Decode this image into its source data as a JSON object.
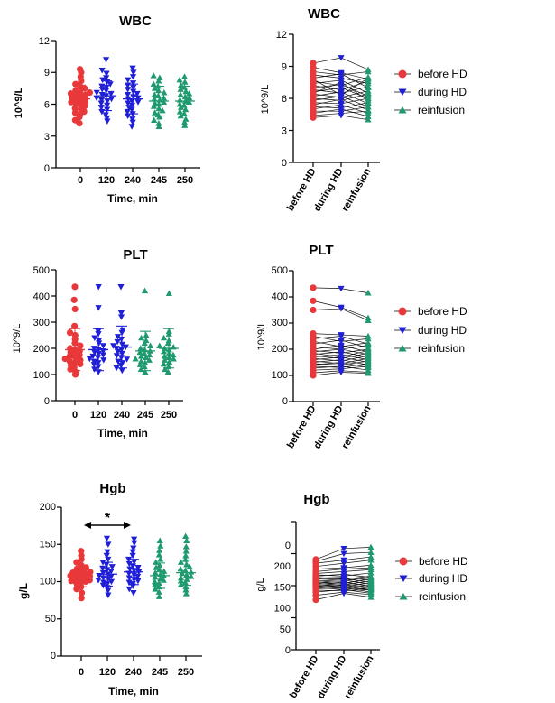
{
  "colors": {
    "before": "#e8383a",
    "during": "#1f1fd6",
    "reinf": "#1f9a6e",
    "axis": "#000000"
  },
  "chart_data": [
    {
      "id": "wbc-scatter",
      "type": "scatter",
      "title": "WBC",
      "xlabel": "Time, min",
      "ylabel": "10^9/L",
      "categories": [
        "0",
        "120",
        "240",
        "245",
        "250"
      ],
      "ylim": [
        0,
        12
      ],
      "yticks": [
        "0",
        "3",
        "6",
        "9",
        "12"
      ],
      "series": [
        {
          "name": "0",
          "color_key": "before",
          "marker": "circle",
          "mean": 6.5,
          "sd": 1.3,
          "values": [
            4.2,
            4.5,
            4.8,
            5.0,
            5.2,
            5.3,
            5.5,
            5.6,
            5.8,
            5.9,
            6.0,
            6.1,
            6.2,
            6.3,
            6.4,
            6.5,
            6.6,
            6.7,
            6.8,
            6.9,
            7.0,
            7.1,
            7.2,
            7.3,
            7.5,
            7.7,
            7.9,
            8.2,
            8.6,
            9.0,
            9.3
          ]
        },
        {
          "name": "120",
          "color_key": "during",
          "marker": "triangle-down",
          "mean": 6.8,
          "sd": 1.4,
          "values": [
            4.4,
            4.7,
            5.0,
            5.3,
            5.5,
            5.7,
            5.9,
            6.1,
            6.3,
            6.4,
            6.5,
            6.6,
            6.8,
            6.9,
            7.0,
            7.1,
            7.3,
            7.4,
            7.6,
            7.7,
            7.9,
            8.1,
            8.3,
            8.5,
            8.9,
            9.2,
            10.2
          ]
        },
        {
          "name": "240",
          "color_key": "during",
          "marker": "triangle-down",
          "mean": 6.5,
          "sd": 1.4,
          "values": [
            3.9,
            4.3,
            4.6,
            4.9,
            5.1,
            5.3,
            5.5,
            5.7,
            5.9,
            6.1,
            6.2,
            6.3,
            6.5,
            6.6,
            6.7,
            6.9,
            7.0,
            7.2,
            7.4,
            7.6,
            7.8,
            8.0,
            8.3,
            8.6,
            9.0,
            9.4
          ]
        },
        {
          "name": "245",
          "color_key": "reinf",
          "marker": "triangle-up",
          "mean": 6.3,
          "sd": 1.4,
          "values": [
            3.9,
            4.2,
            4.5,
            4.8,
            5.0,
            5.2,
            5.4,
            5.6,
            5.8,
            6.0,
            6.1,
            6.2,
            6.4,
            6.5,
            6.6,
            6.8,
            6.9,
            7.1,
            7.3,
            7.5,
            7.7,
            7.9,
            8.2,
            8.5,
            8.7
          ]
        },
        {
          "name": "250",
          "color_key": "reinf",
          "marker": "triangle-up",
          "mean": 6.3,
          "sd": 1.4,
          "values": [
            4.0,
            4.3,
            4.6,
            4.9,
            5.1,
            5.3,
            5.5,
            5.7,
            5.9,
            6.0,
            6.2,
            6.3,
            6.4,
            6.6,
            6.7,
            6.9,
            7.0,
            7.2,
            7.4,
            7.6,
            7.8,
            8.1,
            8.3,
            8.6
          ]
        }
      ]
    },
    {
      "id": "wbc-paired",
      "type": "line",
      "title": "WBC",
      "ylabel": "10^9/L",
      "categories": [
        "before HD",
        "during HD",
        "reinfusion"
      ],
      "ylim": [
        0,
        12
      ],
      "yticks": [
        "0",
        "3",
        "6",
        "9",
        "12"
      ],
      "legend": [
        "before HD",
        "during HD",
        "reinfusion"
      ],
      "lines": [
        [
          9.3,
          9.8,
          8.7
        ],
        [
          8.9,
          8.4,
          7.8
        ],
        [
          8.5,
          8.2,
          8.5
        ],
        [
          8.2,
          7.9,
          7.4
        ],
        [
          7.9,
          8.3,
          7.0
        ],
        [
          7.6,
          7.2,
          8.0
        ],
        [
          7.4,
          7.7,
          6.5
        ],
        [
          7.2,
          6.8,
          7.6
        ],
        [
          7.0,
          7.3,
          6.2
        ],
        [
          6.8,
          6.5,
          7.1
        ],
        [
          6.6,
          7.0,
          6.0
        ],
        [
          6.4,
          6.1,
          6.7
        ],
        [
          6.2,
          6.6,
          5.5
        ],
        [
          6.0,
          5.8,
          6.4
        ],
        [
          5.8,
          6.2,
          5.2
        ],
        [
          5.6,
          5.5,
          6.0
        ],
        [
          5.4,
          5.9,
          4.9
        ],
        [
          5.2,
          5.1,
          5.6
        ],
        [
          5.0,
          5.4,
          4.6
        ],
        [
          4.8,
          4.8,
          5.2
        ],
        [
          4.6,
          5.0,
          4.3
        ],
        [
          4.4,
          4.6,
          4.8
        ],
        [
          4.2,
          4.4,
          4.0
        ],
        [
          6.5,
          7.5,
          5.8
        ],
        [
          7.8,
          6.3,
          7.9
        ]
      ]
    },
    {
      "id": "plt-scatter",
      "type": "scatter",
      "title": "PLT",
      "xlabel": "Time, min",
      "ylabel": "10^9/L",
      "categories": [
        "0",
        "120",
        "240",
        "245",
        "250"
      ],
      "ylim": [
        0,
        500
      ],
      "yticks": [
        "0",
        "100",
        "200",
        "300",
        "400",
        "500"
      ],
      "series": [
        {
          "name": "0",
          "color_key": "before",
          "marker": "circle",
          "mean": 195,
          "sd": 80,
          "values": [
            100,
            110,
            120,
            128,
            135,
            140,
            145,
            150,
            155,
            160,
            165,
            170,
            175,
            180,
            185,
            190,
            195,
            200,
            210,
            220,
            235,
            250,
            260,
            285,
            350,
            385,
            435
          ]
        },
        {
          "name": "120",
          "color_key": "during",
          "marker": "triangle-down",
          "mean": 195,
          "sd": 80,
          "values": [
            110,
            120,
            130,
            138,
            145,
            150,
            155,
            160,
            165,
            170,
            175,
            180,
            185,
            190,
            195,
            200,
            210,
            220,
            230,
            240,
            255,
            265,
            355,
            435
          ]
        },
        {
          "name": "240",
          "color_key": "during",
          "marker": "triangle-down",
          "mean": 205,
          "sd": 80,
          "values": [
            115,
            125,
            135,
            145,
            150,
            158,
            165,
            172,
            180,
            188,
            195,
            200,
            205,
            210,
            215,
            225,
            235,
            245,
            260,
            270,
            320,
            335,
            435
          ]
        },
        {
          "name": "245",
          "color_key": "reinf",
          "marker": "triangle-up",
          "mean": 190,
          "sd": 75,
          "values": [
            110,
            120,
            130,
            138,
            145,
            150,
            155,
            160,
            165,
            170,
            175,
            180,
            185,
            190,
            195,
            200,
            210,
            220,
            230,
            240,
            250,
            420
          ]
        },
        {
          "name": "250",
          "color_key": "reinf",
          "marker": "triangle-up",
          "mean": 200,
          "sd": 75,
          "values": [
            110,
            120,
            130,
            140,
            148,
            155,
            160,
            165,
            170,
            175,
            180,
            188,
            195,
            200,
            205,
            210,
            220,
            230,
            240,
            255,
            265,
            410
          ]
        }
      ]
    },
    {
      "id": "plt-paired",
      "type": "line",
      "title": "PLT",
      "ylabel": "10^9/L",
      "categories": [
        "before HD",
        "during HD",
        "reinfusion"
      ],
      "ylim": [
        0,
        500
      ],
      "yticks": [
        "0",
        "100",
        "200",
        "300",
        "400",
        "500"
      ],
      "legend": [
        "before HD",
        "during HD",
        "reinfusion"
      ],
      "lines": [
        [
          435,
          432,
          415
        ],
        [
          385,
          360,
          320
        ],
        [
          350,
          355,
          310
        ],
        [
          260,
          255,
          250
        ],
        [
          250,
          230,
          240
        ],
        [
          240,
          250,
          220
        ],
        [
          230,
          210,
          225
        ],
        [
          220,
          235,
          205
        ],
        [
          210,
          200,
          215
        ],
        [
          200,
          215,
          190
        ],
        [
          195,
          185,
          200
        ],
        [
          190,
          200,
          180
        ],
        [
          185,
          170,
          195
        ],
        [
          180,
          190,
          170
        ],
        [
          175,
          165,
          185
        ],
        [
          170,
          180,
          160
        ],
        [
          165,
          155,
          175
        ],
        [
          160,
          170,
          150
        ],
        [
          155,
          145,
          165
        ],
        [
          150,
          160,
          140
        ],
        [
          145,
          140,
          155
        ],
        [
          140,
          150,
          130
        ],
        [
          135,
          130,
          145
        ],
        [
          128,
          135,
          120
        ],
        [
          120,
          125,
          135
        ],
        [
          110,
          118,
          112
        ],
        [
          100,
          112,
          108
        ]
      ]
    },
    {
      "id": "hgb-scatter",
      "type": "scatter",
      "title": "Hgb",
      "xlabel": "Time, min",
      "ylabel": "g/L",
      "categories": [
        "0",
        "120",
        "240",
        "245",
        "250"
      ],
      "ylim": [
        0,
        200
      ],
      "yticks": [
        "0",
        "50",
        "100",
        "150",
        "200"
      ],
      "annotation": "*",
      "series": [
        {
          "name": "0",
          "color_key": "before",
          "marker": "circle",
          "mean": 107,
          "sd": 14,
          "values": [
            78,
            85,
            90,
            93,
            95,
            97,
            99,
            100,
            101,
            102,
            103,
            104,
            105,
            106,
            107,
            108,
            109,
            110,
            111,
            112,
            113,
            115,
            117,
            119,
            122,
            126,
            130,
            135,
            141
          ]
        },
        {
          "name": "120",
          "color_key": "during",
          "marker": "triangle-down",
          "mean": 110,
          "sd": 16,
          "values": [
            82,
            88,
            92,
            95,
            97,
            99,
            100,
            102,
            104,
            105,
            107,
            108,
            110,
            112,
            114,
            116,
            118,
            120,
            123,
            126,
            130,
            135,
            140,
            150,
            158
          ]
        },
        {
          "name": "240",
          "color_key": "during",
          "marker": "triangle-down",
          "mean": 113,
          "sd": 17,
          "values": [
            85,
            90,
            94,
            97,
            99,
            101,
            103,
            105,
            107,
            109,
            111,
            113,
            115,
            117,
            119,
            121,
            124,
            127,
            130,
            135,
            140,
            145,
            152,
            157
          ]
        },
        {
          "name": "245",
          "color_key": "reinf",
          "marker": "triangle-up",
          "mean": 108,
          "sd": 17,
          "values": [
            80,
            86,
            90,
            93,
            96,
            98,
            100,
            102,
            104,
            106,
            108,
            110,
            112,
            114,
            116,
            119,
            122,
            126,
            130,
            136,
            142,
            148,
            155
          ]
        },
        {
          "name": "250",
          "color_key": "reinf",
          "marker": "triangle-up",
          "mean": 112,
          "sd": 17,
          "values": [
            84,
            89,
            93,
            96,
            99,
            101,
            103,
            105,
            107,
            109,
            111,
            113,
            115,
            117,
            120,
            123,
            126,
            130,
            135,
            141,
            147,
            155,
            161
          ]
        }
      ]
    },
    {
      "id": "hgb-paired",
      "type": "line",
      "title": "Hgb",
      "ylabel": "g/L",
      "categories": [
        "before HD",
        "during HD",
        "reinfusion"
      ],
      "ylim": [
        0,
        200
      ],
      "yticks": [
        "0",
        "50",
        "100",
        "150",
        "200"
      ],
      "legend": [
        "before HD",
        "during HD",
        "reinfusion"
      ],
      "lines": [
        [
          141,
          158,
          160
        ],
        [
          138,
          150,
          152
        ],
        [
          135,
          140,
          145
        ],
        [
          130,
          135,
          140
        ],
        [
          126,
          128,
          132
        ],
        [
          122,
          126,
          128
        ],
        [
          119,
          122,
          125
        ],
        [
          117,
          115,
          120
        ],
        [
          115,
          118,
          113
        ],
        [
          113,
          110,
          115
        ],
        [
          112,
          113,
          108
        ],
        [
          111,
          108,
          112
        ],
        [
          110,
          111,
          105
        ],
        [
          108,
          104,
          110
        ],
        [
          107,
          109,
          102
        ],
        [
          106,
          102,
          107
        ],
        [
          105,
          106,
          99
        ],
        [
          104,
          100,
          104
        ],
        [
          103,
          103,
          97
        ],
        [
          102,
          98,
          101
        ],
        [
          101,
          101,
          95
        ],
        [
          100,
          96,
          99
        ],
        [
          99,
          99,
          93
        ],
        [
          97,
          94,
          96
        ],
        [
          95,
          97,
          90
        ],
        [
          93,
          92,
          94
        ],
        [
          90,
          94,
          88
        ],
        [
          85,
          90,
          86
        ],
        [
          78,
          88,
          82
        ]
      ]
    }
  ]
}
